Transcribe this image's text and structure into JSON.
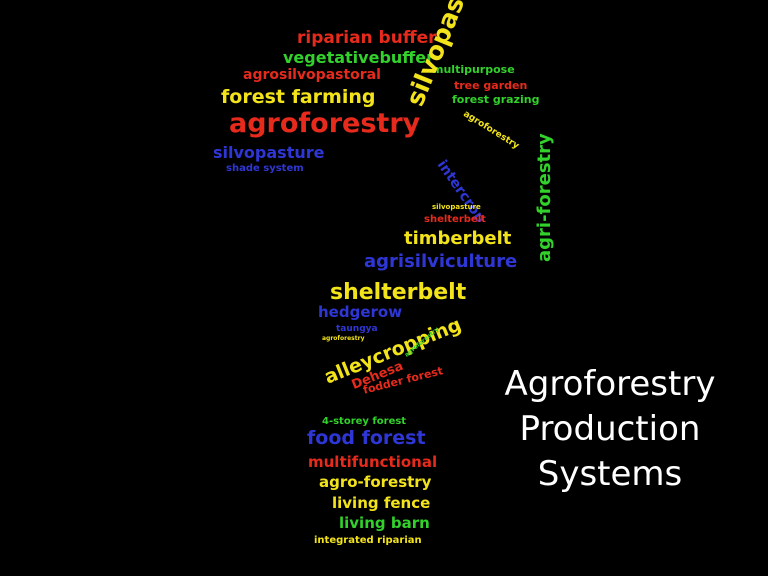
{
  "slide": {
    "title_lines": [
      "Agroforestry",
      "Production",
      "Systems"
    ]
  },
  "word_cloud": {
    "shape": "question-mark",
    "colors": {
      "red": "#e62a1c",
      "green": "#32d12b",
      "yellow": "#f2e31b",
      "blue": "#2f36d6",
      "background": "#000000"
    },
    "words": [
      {
        "text": "riparian  buffer",
        "color": "#e62a1c"
      },
      {
        "text": "vegetativebuffer",
        "color": "#32d12b"
      },
      {
        "text": "multipurpose",
        "color": "#32d12b"
      },
      {
        "text": "agrosilvopastoral",
        "color": "#e62a1c"
      },
      {
        "text": "tree  garden",
        "color": "#e62a1c"
      },
      {
        "text": "forest  farming",
        "color": "#f2e31b"
      },
      {
        "text": "forest  grazing",
        "color": "#32d12b"
      },
      {
        "text": "silvopasture",
        "color": "#f2e31b"
      },
      {
        "text": "agroforestry",
        "color": "#e62a1c"
      },
      {
        "text": "agroforestry",
        "color": "#f2e31b"
      },
      {
        "text": "silvopasture",
        "color": "#2f36d6"
      },
      {
        "text": "shade  system",
        "color": "#2f36d6"
      },
      {
        "text": "intercrop",
        "color": "#2f36d6"
      },
      {
        "text": "agri-forestry",
        "color": "#32d12b"
      },
      {
        "text": "silvopasture",
        "color": "#f2e31b"
      },
      {
        "text": "shelterbelt",
        "color": "#e62a1c"
      },
      {
        "text": "timberbelt",
        "color": "#f2e31b"
      },
      {
        "text": "agrisilviculture",
        "color": "#2f36d6"
      },
      {
        "text": "shelterbelt",
        "color": "#f2e31b"
      },
      {
        "text": "hedgerow",
        "color": "#2f36d6"
      },
      {
        "text": "taungya",
        "color": "#2f36d6"
      },
      {
        "text": "agroforestry",
        "color": "#f2e31b"
      },
      {
        "text": "alleycropping",
        "color": "#f2e31b"
      },
      {
        "text": "agroforestry",
        "color": "#32d12b"
      },
      {
        "text": "Dehesa",
        "color": "#e62a1c"
      },
      {
        "text": "fodder  forest",
        "color": "#e62a1c"
      },
      {
        "text": "4-storey  forest",
        "color": "#32d12b"
      },
      {
        "text": "food  forest",
        "color": "#2f36d6"
      },
      {
        "text": "multifunctional",
        "color": "#e62a1c"
      },
      {
        "text": "agro-forestry",
        "color": "#f2e31b"
      },
      {
        "text": "living  fence",
        "color": "#f2e31b"
      },
      {
        "text": "living  barn",
        "color": "#32d12b"
      },
      {
        "text": "integrated  riparian",
        "color": "#f2e31b"
      }
    ]
  }
}
